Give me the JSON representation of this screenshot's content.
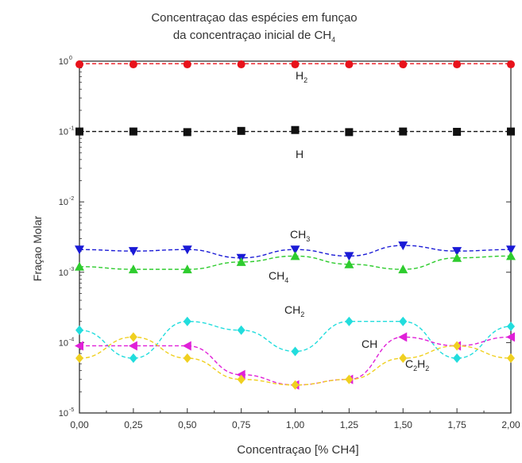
{
  "chart_data": {
    "type": "scatter",
    "title_line1": "Concentraçao das espécies em funçao",
    "title_line2": "da concentraçao inicial de CH",
    "title_sub": "4",
    "xlabel": "Concentraçao [% CH4]",
    "ylabel": "Fraçao Molar",
    "yscale": "log",
    "xlim": [
      0.0,
      2.0
    ],
    "ylim": [
      1e-05,
      1
    ],
    "x_ticks": [
      "0,00",
      "0,25",
      "0,50",
      "0,75",
      "1,00",
      "1,25",
      "1,50",
      "1,75",
      "2,00"
    ],
    "y_ticks": [
      {
        "base": "10",
        "exp": "-5",
        "value": 1e-05
      },
      {
        "base": "10",
        "exp": "-4",
        "value": 0.0001
      },
      {
        "base": "10",
        "exp": "-3",
        "value": 0.001
      },
      {
        "base": "10",
        "exp": "-2",
        "value": 0.01
      },
      {
        "base": "10",
        "exp": "-1",
        "value": 0.1
      },
      {
        "base": "10",
        "exp": "0",
        "value": 1
      }
    ],
    "x": [
      0.0,
      0.25,
      0.5,
      0.75,
      1.0,
      1.25,
      1.5,
      1.75,
      2.0
    ],
    "series": [
      {
        "label": "H",
        "sub": "2",
        "color": "#e8121b",
        "marker": "circle",
        "values": [
          0.9,
          0.9,
          0.9,
          0.9,
          0.9,
          0.9,
          0.9,
          0.9,
          0.9
        ],
        "fit": [
          0.92,
          0.92
        ]
      },
      {
        "label": "H",
        "sub": "",
        "color": "#111111",
        "marker": "square",
        "values": [
          0.1,
          0.1,
          0.098,
          0.102,
          0.105,
          0.098,
          0.1,
          0.099,
          0.1
        ],
        "fit": [
          0.1,
          0.1
        ]
      },
      {
        "label": "CH",
        "sub": "3",
        "color": "#1a1ad6",
        "marker": "triangle-down",
        "values": [
          0.0021,
          0.002,
          0.0021,
          0.0016,
          0.0021,
          0.0017,
          0.0024,
          0.002,
          0.0021
        ]
      },
      {
        "label": "CH",
        "sub": "4",
        "color": "#2ecc2e",
        "marker": "triangle-up",
        "values": [
          0.0012,
          0.0011,
          0.0011,
          0.0014,
          0.0017,
          0.0013,
          0.0011,
          0.0016,
          0.0017
        ]
      },
      {
        "label": "CH",
        "sub": "2",
        "color": "#22dddd",
        "marker": "diamond",
        "values": [
          0.00015,
          6e-05,
          0.0002,
          0.00015,
          7.5e-05,
          0.0002,
          0.0002,
          6e-05,
          0.00017
        ]
      },
      {
        "label": "CH",
        "sub": "",
        "color": "#e020d8",
        "marker": "triangle-left",
        "values": [
          9e-05,
          9e-05,
          9e-05,
          3.5e-05,
          2.5e-05,
          3e-05,
          0.00012,
          9e-05,
          0.00012
        ]
      },
      {
        "label": "C",
        "sub": "2",
        "label2": "H",
        "sub2": "2",
        "color": "#f0d020",
        "marker": "diamond",
        "values": [
          6e-05,
          0.00012,
          6e-05,
          3e-05,
          2.5e-05,
          3e-05,
          6e-05,
          9e-05,
          6e-05
        ]
      }
    ]
  }
}
